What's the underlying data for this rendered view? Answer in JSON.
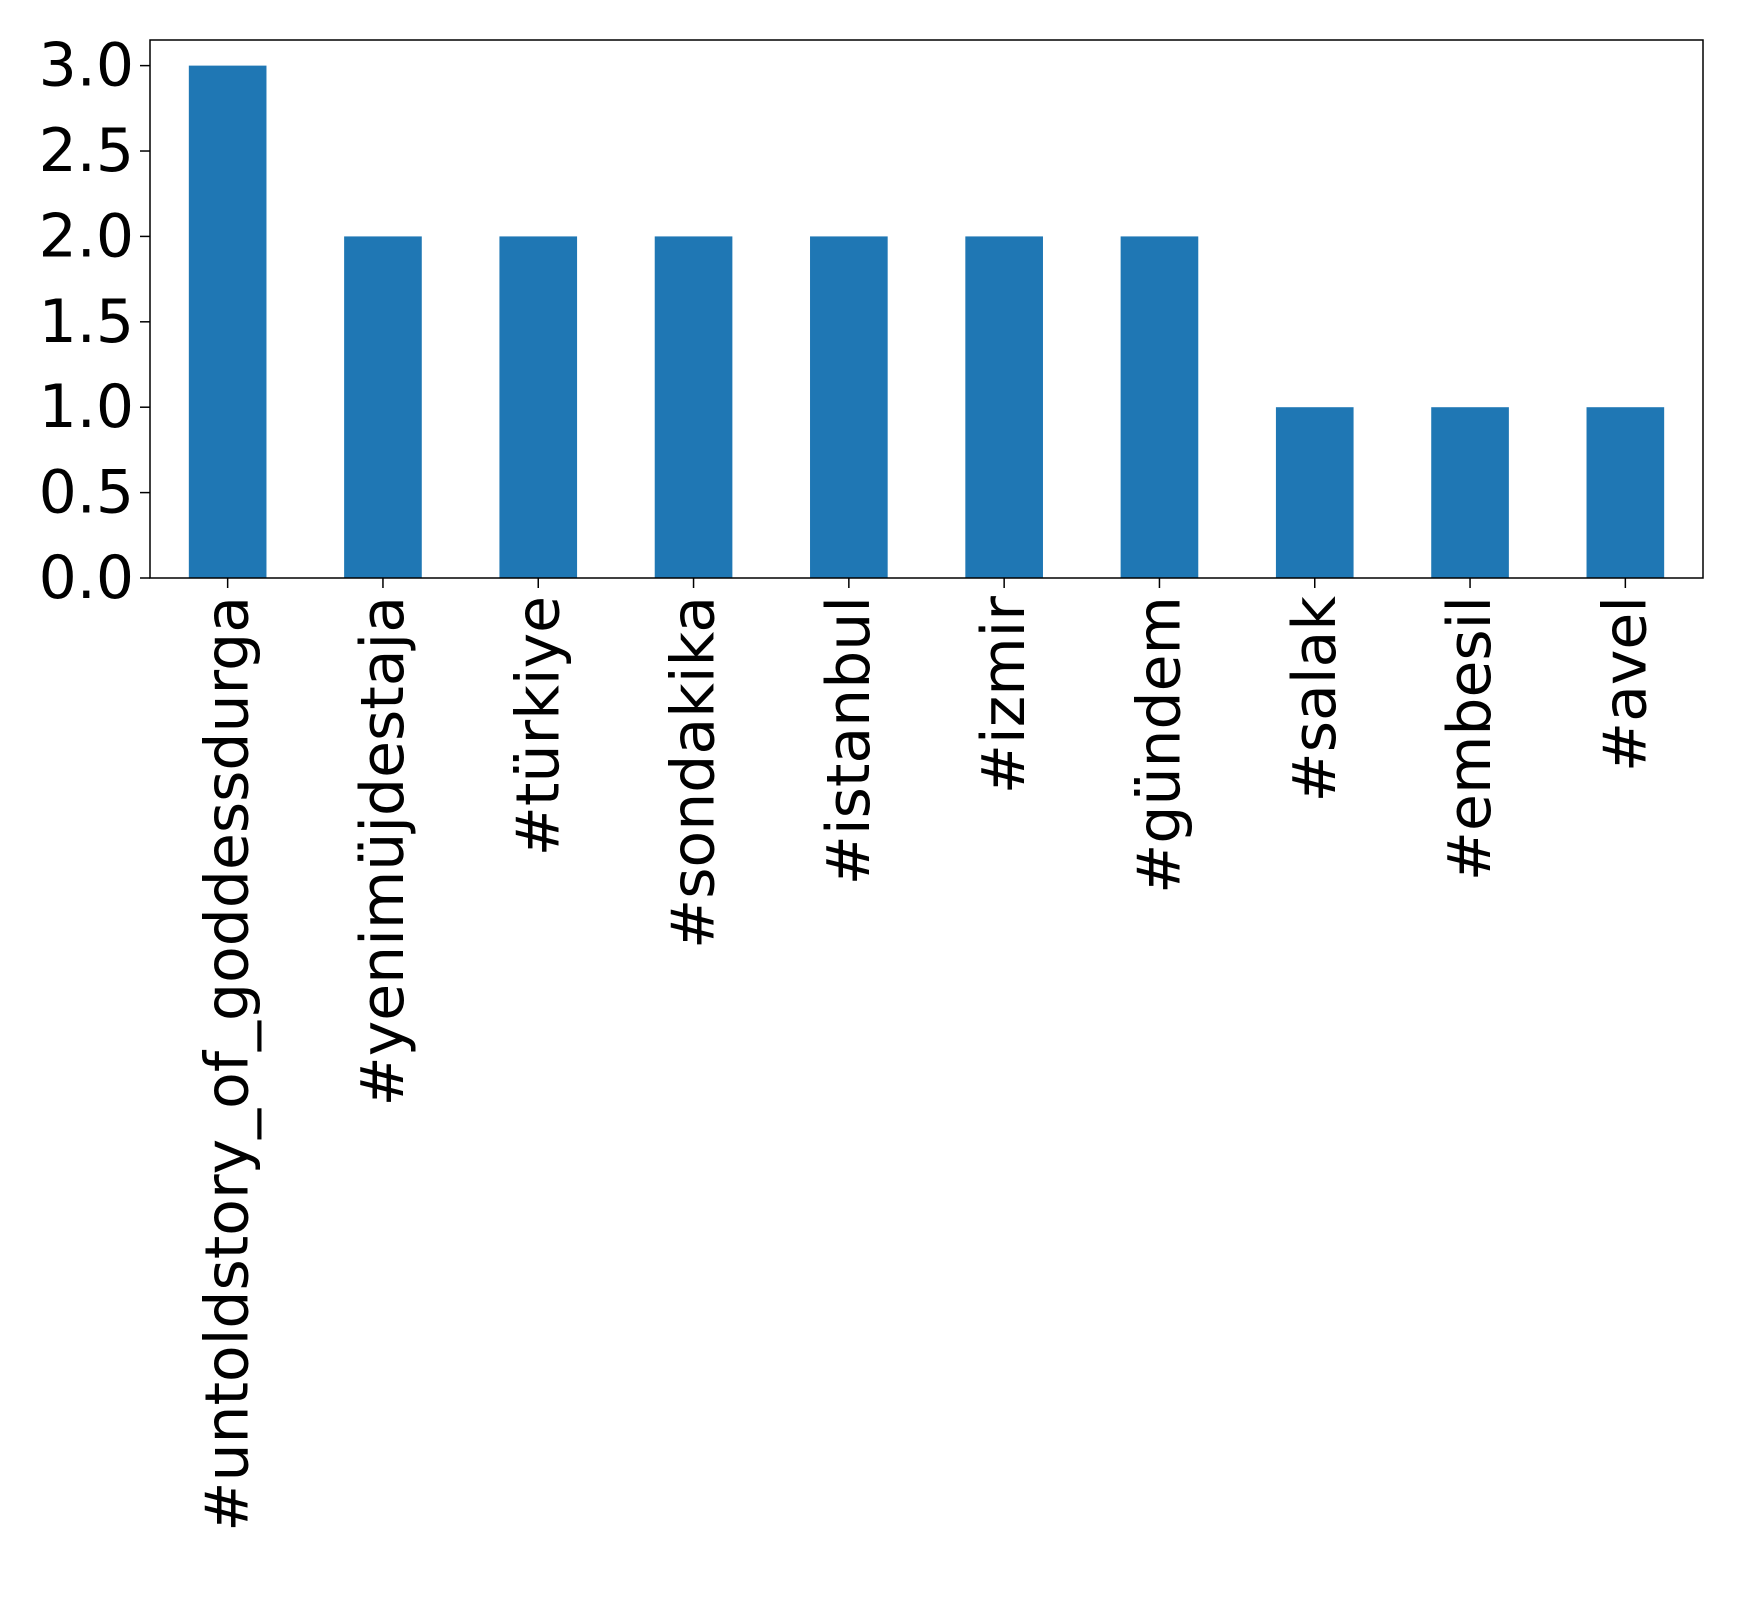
{
  "chart_data": {
    "type": "bar",
    "title": "",
    "xlabel": "",
    "ylabel": "",
    "categories": [
      "#untoldstory_of_goddessdurga",
      "#yenimüjdestaja",
      "#türkiye",
      "#sondakika",
      "#istanbul",
      "#izmir",
      "#gündem",
      "#salak",
      "#embesil",
      "#avel"
    ],
    "values": [
      3,
      2,
      2,
      2,
      2,
      2,
      2,
      1,
      1,
      1
    ],
    "ylim": [
      0,
      3.15
    ],
    "yticks": [
      "0.0",
      "0.5",
      "1.0",
      "1.5",
      "2.0",
      "2.5",
      "3.0"
    ],
    "bar_color": "#1f77b4",
    "grid": false,
    "legend": "none"
  }
}
